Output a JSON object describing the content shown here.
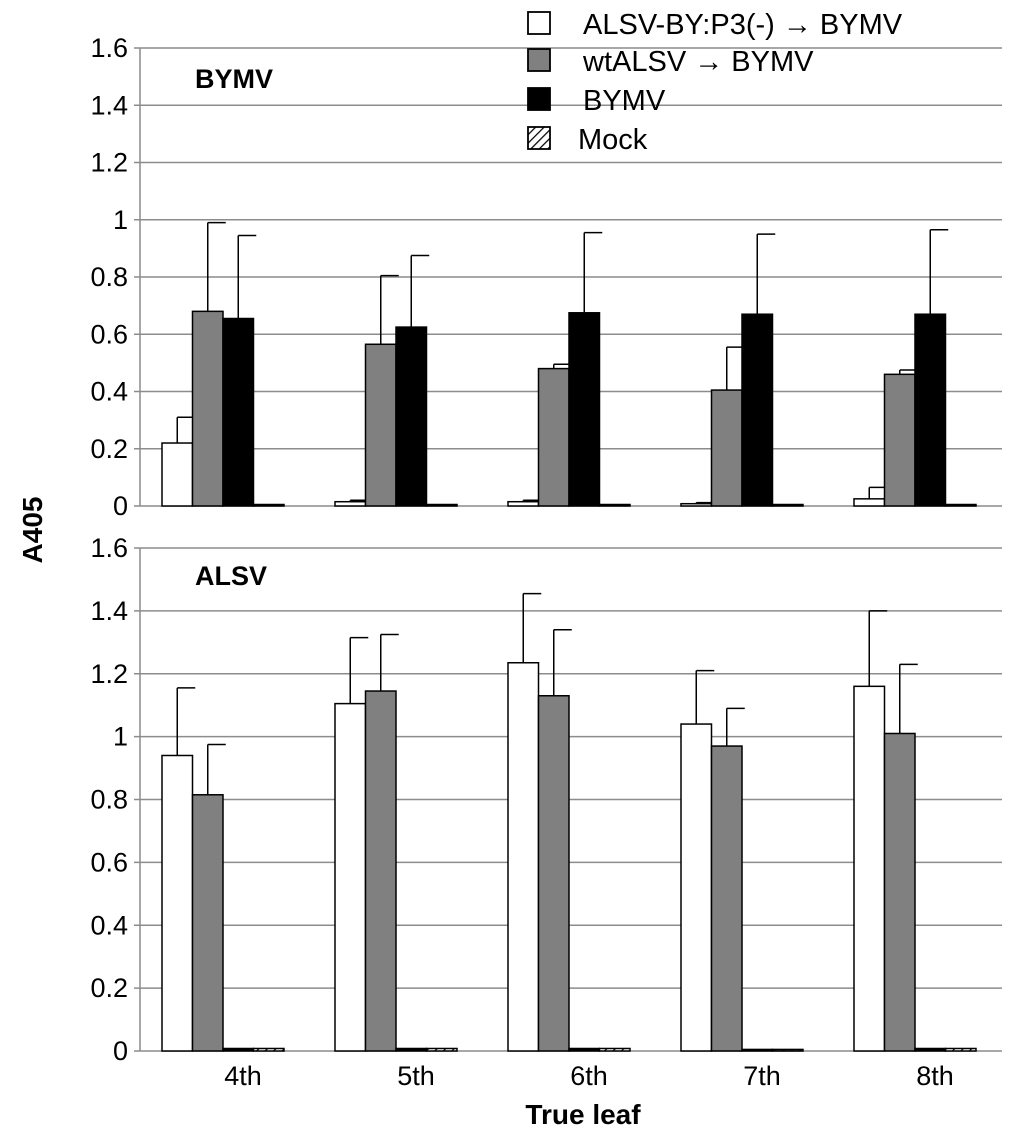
{
  "chart_data": {
    "type": "bar",
    "ylabel": "A405",
    "xlabel": "True leaf",
    "categories": [
      "4th",
      "5th",
      "6th",
      "7th",
      "8th"
    ],
    "legend": [
      {
        "label": "ALSV-BY:P3(-) → BYMV",
        "color": "#ffffff"
      },
      {
        "label": "wtALSV → BYMV",
        "color": "#808080"
      },
      {
        "label": "BYMV",
        "color": "#000000"
      },
      {
        "label": "Mock",
        "color": "hatched"
      }
    ],
    "legend_placement": "top-right",
    "panels": [
      {
        "title": "BYMV",
        "ylim": [
          0,
          1.6
        ],
        "yticks": [
          "0",
          "0.2",
          "0.4",
          "0.6",
          "0.8",
          "1",
          "1.2",
          "1.4",
          "1.6"
        ],
        "series": [
          {
            "name": "ALSV-BY:P3(-) → BYMV",
            "values": [
              0.22,
              0.015,
              0.015,
              0.008,
              0.025
            ],
            "errors": [
              0.09,
              0.005,
              0.005,
              0.004,
              0.04
            ]
          },
          {
            "name": "wtALSV → BYMV",
            "values": [
              0.68,
              0.565,
              0.48,
              0.405,
              0.46
            ],
            "errors": [
              0.31,
              0.24,
              0.015,
              0.15,
              0.015
            ]
          },
          {
            "name": "BYMV",
            "values": [
              0.655,
              0.625,
              0.675,
              0.67,
              0.67
            ],
            "errors": [
              0.29,
              0.25,
              0.28,
              0.28,
              0.295
            ]
          },
          {
            "name": "Mock",
            "values": [
              0.005,
              0.005,
              0.005,
              0.005,
              0.005
            ],
            "errors": [
              0,
              0,
              0,
              0,
              0
            ]
          }
        ]
      },
      {
        "title": "ALSV",
        "ylim": [
          0,
          1.6
        ],
        "yticks": [
          "0",
          "0.2",
          "0.4",
          "0.6",
          "0.8",
          "1",
          "1.2",
          "1.4",
          "1.6"
        ],
        "series": [
          {
            "name": "ALSV-BY:P3(-) → BYMV",
            "values": [
              0.94,
              1.105,
              1.235,
              1.04,
              1.16
            ],
            "errors": [
              0.215,
              0.21,
              0.22,
              0.17,
              0.24
            ]
          },
          {
            "name": "wtALSV → BYMV",
            "values": [
              0.815,
              1.145,
              1.13,
              0.97,
              1.01
            ],
            "errors": [
              0.16,
              0.18,
              0.21,
              0.12,
              0.22
            ]
          },
          {
            "name": "BYMV",
            "values": [
              0.008,
              0.008,
              0.008,
              0.005,
              0.008
            ],
            "errors": [
              0,
              0,
              0,
              0,
              0
            ]
          },
          {
            "name": "Mock",
            "values": [
              0.008,
              0.008,
              0.008,
              0.005,
              0.008
            ],
            "errors": [
              0,
              0,
              0,
              0,
              0
            ]
          }
        ]
      }
    ]
  }
}
